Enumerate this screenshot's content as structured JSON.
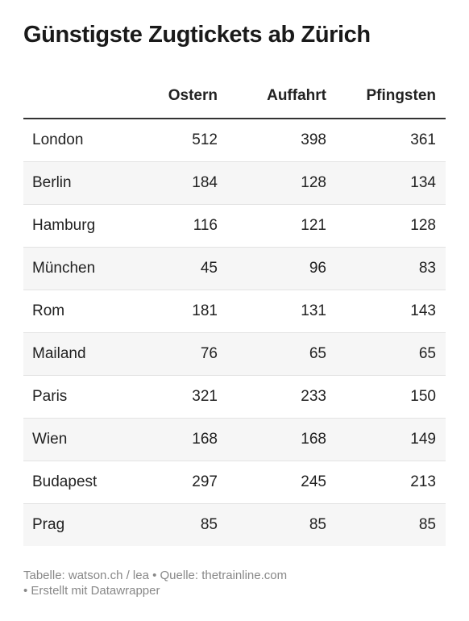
{
  "chart_data": {
    "type": "table",
    "title": "Günstigste Zugtickets ab Zürich",
    "columns": [
      "",
      "Ostern",
      "Auffahrt",
      "Pfingsten"
    ],
    "rows": [
      {
        "city": "London",
        "values": [
          512,
          398,
          361
        ]
      },
      {
        "city": "Berlin",
        "values": [
          184,
          128,
          134
        ]
      },
      {
        "city": "Hamburg",
        "values": [
          116,
          121,
          128
        ]
      },
      {
        "city": "München",
        "values": [
          45,
          96,
          83
        ]
      },
      {
        "city": "Rom",
        "values": [
          181,
          131,
          143
        ]
      },
      {
        "city": "Mailand",
        "values": [
          76,
          65,
          65
        ]
      },
      {
        "city": "Paris",
        "values": [
          321,
          233,
          150
        ]
      },
      {
        "city": "Wien",
        "values": [
          168,
          168,
          149
        ]
      },
      {
        "city": "Budapest",
        "values": [
          297,
          245,
          213
        ]
      },
      {
        "city": "Prag",
        "values": [
          85,
          85,
          85
        ]
      }
    ],
    "footer_line1": "Tabelle: watson.ch / lea • Quelle: thetrainline.com",
    "footer_line2": "• Erstellt mit Datawrapper"
  }
}
